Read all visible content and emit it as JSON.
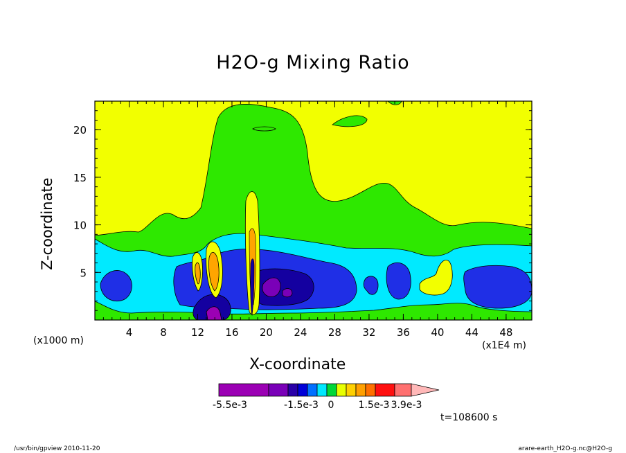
{
  "chart_data": {
    "type": "contour",
    "title": "H2O-g Mixing Ratio",
    "xlabel": "X-coordinate",
    "ylabel": "Z-coordinate",
    "x_unit_label": "(x1000 m)",
    "x_unit_label_secondary": "(x1E4 m)",
    "x_ticks": [
      "4",
      "8",
      "12",
      "16",
      "20",
      "24",
      "28",
      "32",
      "36",
      "40",
      "44",
      "48"
    ],
    "y_ticks": [
      "5",
      "10",
      "15",
      "20"
    ],
    "xlim": [
      0,
      51
    ],
    "ylim": [
      0,
      23
    ],
    "colorbar": {
      "labels": [
        "-5.5e-3",
        "-1.5e-3",
        "0",
        "1.5e-3",
        "3.9e-3"
      ],
      "colors": [
        "#9b00b4",
        "#7a00b8",
        "#2a00a8",
        "#0000d8",
        "#0070ff",
        "#00e8ff",
        "#00d838",
        "#e8ff00",
        "#ffd000",
        "#ffa000",
        "#ff7000",
        "#ff1010",
        "#ff7070",
        "#ffb8b8"
      ]
    },
    "regions": [
      {
        "level": "yellow",
        "color": "#f2ff00"
      },
      {
        "level": "green",
        "color": "#2ee800"
      },
      {
        "level": "cyan",
        "color": "#00eaff"
      },
      {
        "level": "blue",
        "color": "#1f2fe6"
      },
      {
        "level": "navy",
        "color": "#1400a0"
      },
      {
        "level": "purple",
        "color": "#7a00b8"
      },
      {
        "level": "orange",
        "color": "#ffa500"
      }
    ],
    "time_label": "t=108600 s"
  },
  "footer": {
    "left": "/usr/bin/gpview   2010-11-20",
    "right": "arare-earth_H2O-g.nc@H2O-g"
  }
}
